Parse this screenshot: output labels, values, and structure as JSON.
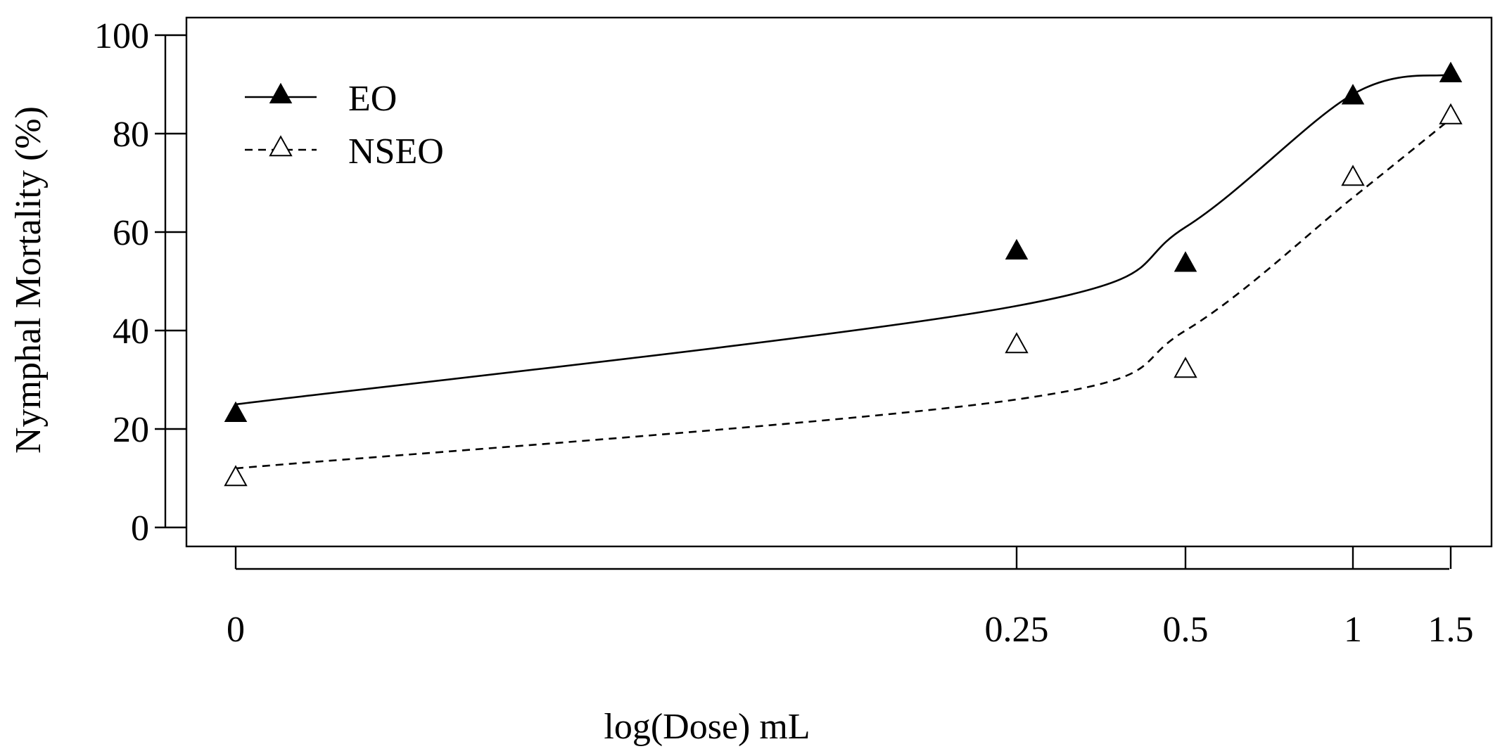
{
  "chart_data": {
    "type": "scatter",
    "title": "",
    "xlabel": "log(Dose) mL",
    "ylabel": "Nymphal Mortality (%)",
    "xlim": [
      -0.05,
      1.55
    ],
    "ylim": [
      0,
      100
    ],
    "x_ticks": [
      {
        "value": 0,
        "label": "0"
      },
      {
        "value": 0.25,
        "label": "0.25"
      },
      {
        "value": 0.5,
        "label": "0.5"
      },
      {
        "value": 1,
        "label": "1"
      },
      {
        "value": 1.5,
        "label": "1.5"
      }
    ],
    "y_ticks": [
      {
        "value": 0,
        "label": "0"
      },
      {
        "value": 20,
        "label": "20"
      },
      {
        "value": 40,
        "label": "40"
      },
      {
        "value": 60,
        "label": "60"
      },
      {
        "value": 80,
        "label": "80"
      },
      {
        "value": 100,
        "label": "100"
      }
    ],
    "legend_position": "top-left",
    "series": [
      {
        "name": "EO",
        "marker": "filled-triangle",
        "line_style": "solid",
        "points": [
          {
            "x": 0,
            "y": 23
          },
          {
            "x": 0.25,
            "y": 56
          },
          {
            "x": 0.5,
            "y": 53.5
          },
          {
            "x": 1,
            "y": 87.5
          },
          {
            "x": 1.5,
            "y": 92
          }
        ],
        "fitted_curve": [
          {
            "x": 0,
            "y": 25
          },
          {
            "x": 0.25,
            "y": 45
          },
          {
            "x": 0.5,
            "y": 61
          },
          {
            "x": 1,
            "y": 88
          },
          {
            "x": 1.5,
            "y": 92
          }
        ]
      },
      {
        "name": "NSEO",
        "marker": "open-triangle",
        "line_style": "dashed",
        "points": [
          {
            "x": 0,
            "y": 10
          },
          {
            "x": 0.25,
            "y": 37
          },
          {
            "x": 0.5,
            "y": 32
          },
          {
            "x": 1,
            "y": 71
          },
          {
            "x": 1.5,
            "y": 83.5
          }
        ],
        "fitted_curve": [
          {
            "x": 0,
            "y": 12
          },
          {
            "x": 0.25,
            "y": 26
          },
          {
            "x": 0.5,
            "y": 40
          },
          {
            "x": 1,
            "y": 67
          },
          {
            "x": 1.5,
            "y": 83
          }
        ]
      }
    ]
  }
}
